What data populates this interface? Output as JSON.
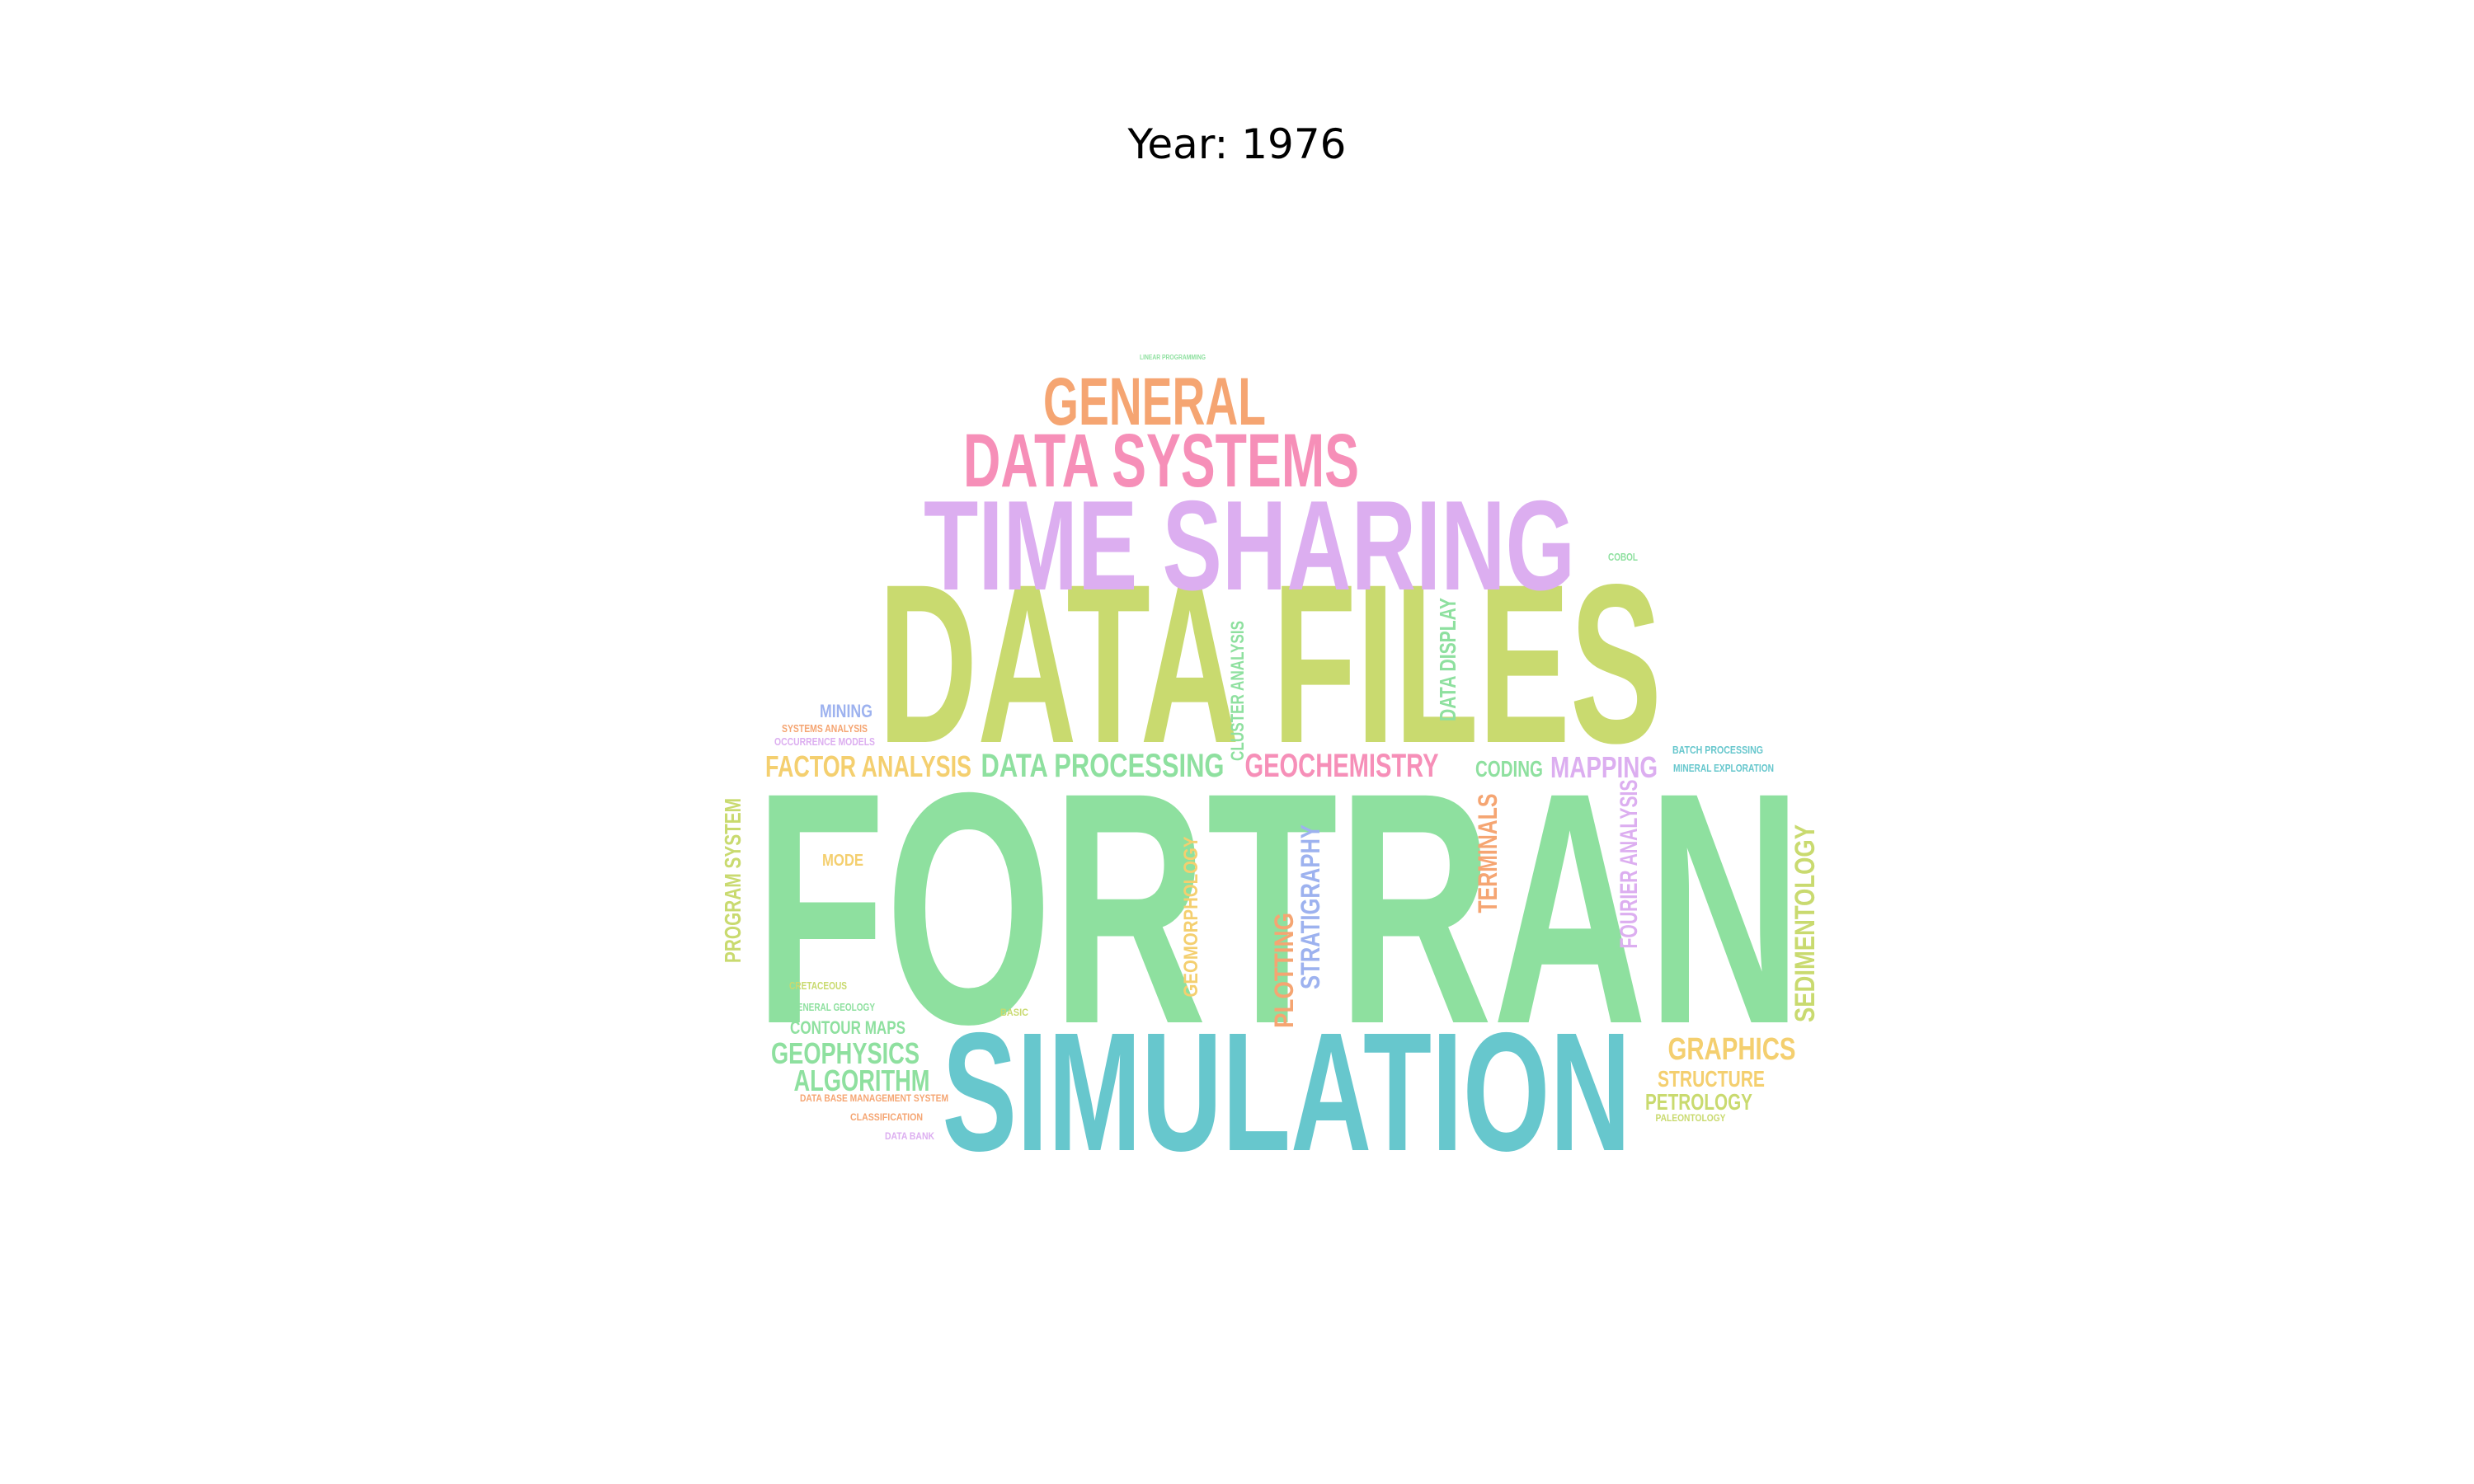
{
  "title": "Year: 1976",
  "colors": {
    "green": "#8ee09f",
    "olive": "#c9da6f",
    "violet": "#dcaef0",
    "pink": "#f68fb8",
    "orange": "#f5a572",
    "teal": "#67c7cd",
    "yellow": "#f4cf6f",
    "blue": "#9db2ef"
  },
  "words": {
    "fortran": "FORTRAN",
    "data_files": "DATA FILES",
    "simulation": "SIMULATION",
    "time_sharing": "TIME SHARING",
    "data_systems": "DATA SYSTEMS",
    "general": "GENERAL",
    "data_processing": "DATA PROCESSING",
    "geochemistry": "GEOCHEMISTRY",
    "factor_analysis": "FACTOR ANALYSIS",
    "mapping": "MAPPING",
    "coding": "CODING",
    "graphics": "GRAPHICS",
    "structure": "STRUCTURE",
    "petrology": "PETROLOGY",
    "geophysics": "GEOPHYSICS",
    "algorithm": "ALGORITHM",
    "contour_maps": "CONTOUR MAPS",
    "general_geology": "GENERAL GEOLOGY",
    "cretaceous": "CRETACEOUS",
    "data_base_management_system": "DATA BASE MANAGEMENT SYSTEM",
    "classification": "CLASSIFICATION",
    "data_bank": "DATA BANK",
    "mining": "MINING",
    "systems_analysis": "SYSTEMS ANALYSIS",
    "occurrence_models": "OCCURRENCE MODELS",
    "mode": "MODE",
    "basic": "BASIC",
    "batch_processing": "BATCH PROCESSING",
    "mineral_exploration": "MINERAL EXPLORATION",
    "paleontology": "PALEONTOLOGY",
    "cobol": "COBOL",
    "linear_programming": "LINEAR PROGRAMMING",
    "program_system": "PROGRAM SYSTEM",
    "geomorphology": "GEOMORPHOLOGY",
    "plotting": "PLOTTING",
    "stratigraphy": "STRATIGRAPHY",
    "terminals": "TERMINALS",
    "fourier_analysis": "FOURIER ANALYSIS",
    "sedimentology": "SEDIMENTOLOGY",
    "cluster_analysis": "CLUSTER ANALYSIS",
    "data_display": "DATA DISPLAY"
  }
}
